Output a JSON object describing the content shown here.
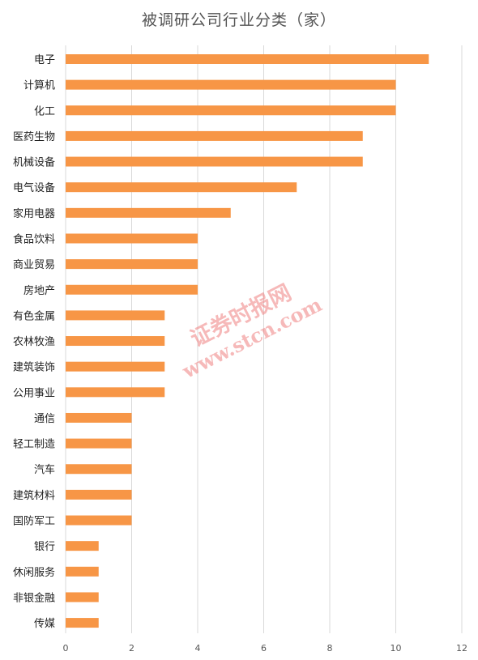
{
  "chart_data": {
    "type": "bar",
    "orientation": "horizontal",
    "title": "被调研公司行业分类（家）",
    "categories": [
      "电子",
      "计算机",
      "化工",
      "医药生物",
      "机械设备",
      "电气设备",
      "家用电器",
      "食品饮料",
      "商业贸易",
      "房地产",
      "有色金属",
      "农林牧渔",
      "建筑装饰",
      "公用事业",
      "通信",
      "轻工制造",
      "汽车",
      "建筑材料",
      "国防军工",
      "银行",
      "休闲服务",
      "非银金融",
      "传媒"
    ],
    "values": [
      11,
      10,
      10,
      9,
      9,
      7,
      5,
      4,
      4,
      4,
      3,
      3,
      3,
      3,
      2,
      2,
      2,
      2,
      2,
      1,
      1,
      1,
      1
    ],
    "xlim": [
      0,
      12
    ],
    "xticks": [
      0,
      2,
      4,
      6,
      8,
      10,
      12
    ],
    "grid": true,
    "bar_color": "#F79646",
    "grid_color": "#D9D9D9"
  },
  "watermark": {
    "line1": "证券时报网",
    "line2": "www.stcn.com",
    "color": "#f08080"
  }
}
